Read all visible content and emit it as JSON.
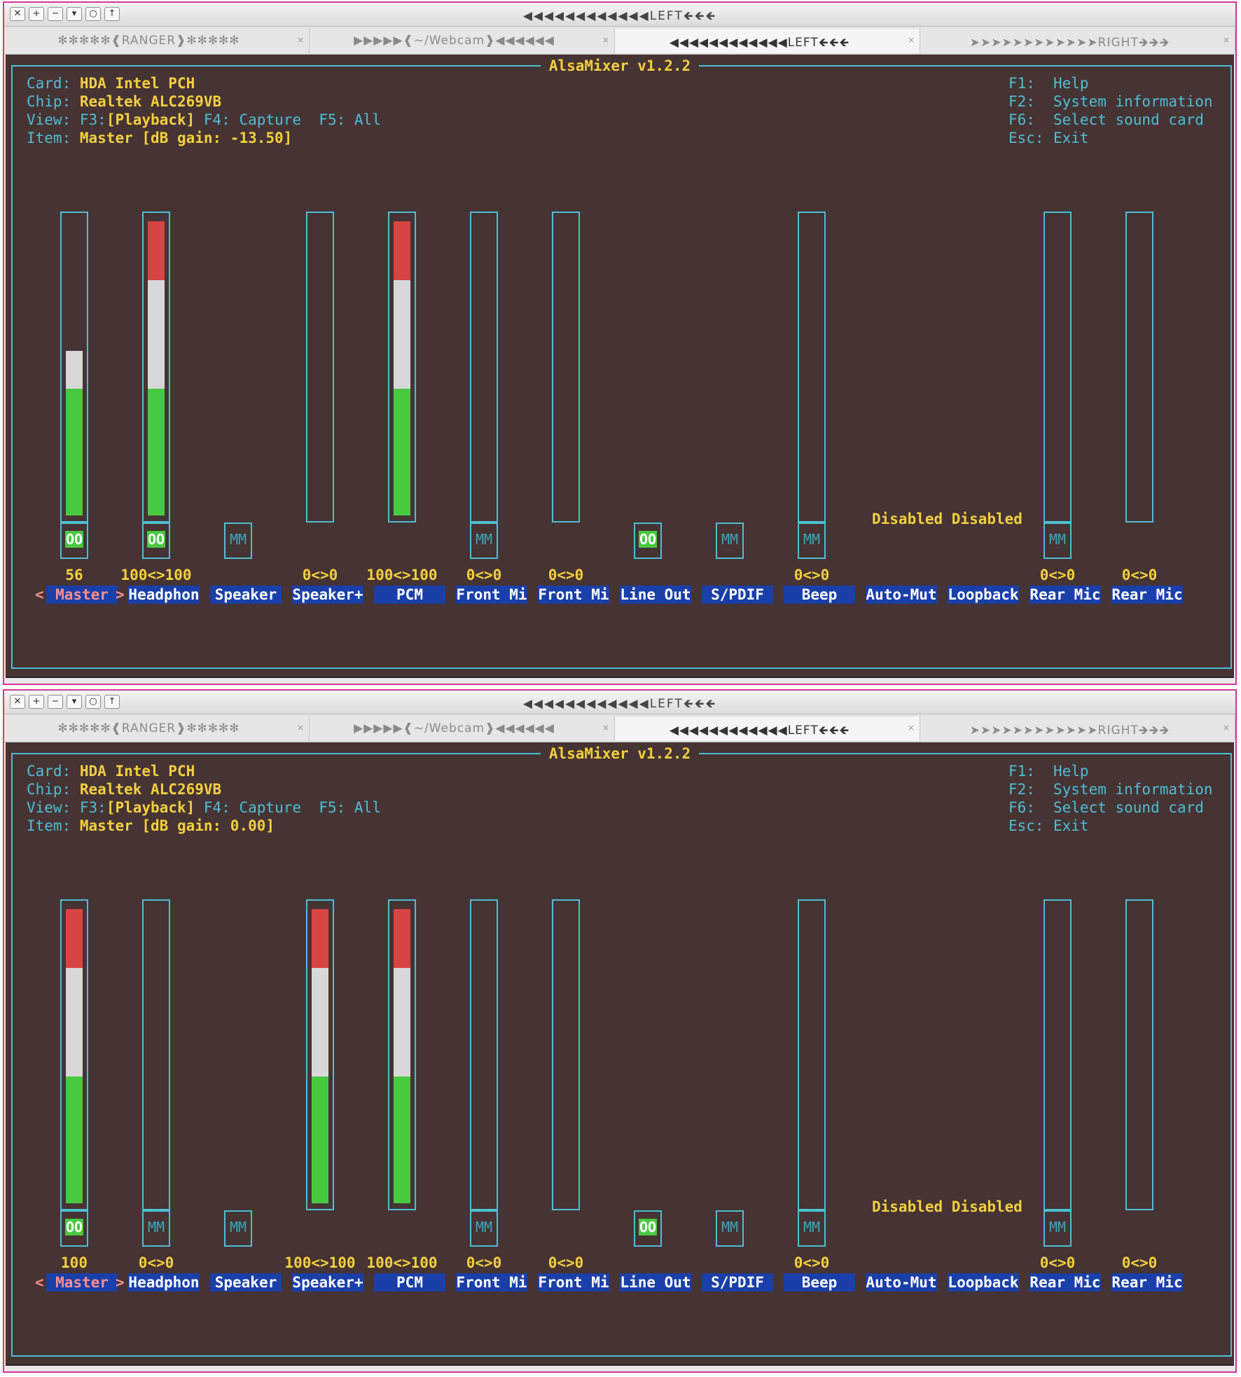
{
  "windows": [
    {
      "title": "◀◀◀◀◀◀◀◀◀◀◀◀LEFT🡸🡸🡸",
      "tabs": [
        {
          "label": "✻✻✻✻✻❰RANGER❱✻✻✻✻✻",
          "close": "×"
        },
        {
          "label": "▶▶▶▶▶❰~/Webcam❱◀◀◀◀◀◀",
          "close": "×"
        },
        {
          "label": "◀◀◀◀◀◀◀◀◀◀◀◀LEFT🡸🡸🡸",
          "close": "×"
        },
        {
          "label": "➤➤➤➤➤➤➤➤➤➤➤➤RIGHT🡺🡺🡺",
          "close": "×"
        }
      ],
      "mixer": {
        "title": "AlsaMixer v1.2.2",
        "card_label": "Card:",
        "card": "HDA Intel PCH",
        "chip_label": "Chip:",
        "chip": "Realtek ALC269VB",
        "view_label": "View:",
        "view_f3": "F3:",
        "view_playback": "[Playback]",
        "view_f4": "F4:",
        "view_capture": "Capture",
        "view_f5": "F5:",
        "view_all": "All",
        "item_label": "Item:",
        "item": "Master [dB gain: -13.50]",
        "help": [
          {
            "key": "F1:",
            "text": "Help"
          },
          {
            "key": "F2:",
            "text": "System information"
          },
          {
            "key": "F6:",
            "text": "Select sound card"
          },
          {
            "key": "Esc:",
            "text": "Exit"
          }
        ],
        "disabled_text": "Disabled Disabled",
        "sel_marker_left": "<",
        "sel_marker_right": ">",
        "controls": [
          {
            "name": "Master",
            "level": 0.56,
            "volume": "56",
            "switch": "OO",
            "selected": true
          },
          {
            "name": "Headphon",
            "level": 1.0,
            "volume": "100<>100",
            "switch": "OO"
          },
          {
            "name": "Speaker",
            "switch": "MM"
          },
          {
            "name": "Speaker+",
            "level": 0,
            "volume": "0<>0"
          },
          {
            "name": "PCM",
            "level": 1.0,
            "volume": "100<>100"
          },
          {
            "name": "Front Mi",
            "level": 0,
            "volume": "0<>0",
            "switch": "MM"
          },
          {
            "name": "Front Mi",
            "level": 0,
            "volume": "0<>0"
          },
          {
            "name": "Line Out",
            "switch": "OO"
          },
          {
            "name": "S/PDIF",
            "switch": "MM"
          },
          {
            "name": "Beep",
            "level": 0,
            "volume": "0<>0",
            "switch": "MM"
          },
          {
            "name": "Auto-Mut"
          },
          {
            "name": "Loopback"
          },
          {
            "name": "Rear Mic",
            "level": 0,
            "volume": "0<>0",
            "switch": "MM"
          },
          {
            "name": "Rear Mic",
            "level": 0,
            "volume": "0<>0"
          }
        ]
      }
    },
    {
      "title": "◀◀◀◀◀◀◀◀◀◀◀◀LEFT🡸🡸🡸",
      "tabs": [
        {
          "label": "✻✻✻✻✻❰RANGER❱✻✻✻✻✻",
          "close": "×"
        },
        {
          "label": "▶▶▶▶▶❰~/Webcam❱◀◀◀◀◀◀",
          "close": "×"
        },
        {
          "label": "◀◀◀◀◀◀◀◀◀◀◀◀LEFT🡸🡸🡸",
          "close": "×"
        },
        {
          "label": "➤➤➤➤➤➤➤➤➤➤➤➤RIGHT🡺🡺🡺",
          "close": "×"
        }
      ],
      "mixer": {
        "title": "AlsaMixer v1.2.2",
        "card_label": "Card:",
        "card": "HDA Intel PCH",
        "chip_label": "Chip:",
        "chip": "Realtek ALC269VB",
        "view_label": "View:",
        "view_f3": "F3:",
        "view_playback": "[Playback]",
        "view_f4": "F4:",
        "view_capture": "Capture",
        "view_f5": "F5:",
        "view_all": "All",
        "item_label": "Item:",
        "item": "Master [dB gain: 0.00]",
        "help": [
          {
            "key": "F1:",
            "text": "Help"
          },
          {
            "key": "F2:",
            "text": "System information"
          },
          {
            "key": "F6:",
            "text": "Select sound card"
          },
          {
            "key": "Esc:",
            "text": "Exit"
          }
        ],
        "disabled_text": "Disabled Disabled",
        "sel_marker_left": "<",
        "sel_marker_right": ">",
        "controls": [
          {
            "name": "Master",
            "level": 1.0,
            "volume": "100",
            "switch": "OO",
            "selected": true
          },
          {
            "name": "Headphon",
            "level": 0,
            "volume": "0<>0",
            "switch": "MM"
          },
          {
            "name": "Speaker",
            "switch": "MM"
          },
          {
            "name": "Speaker+",
            "level": 1.0,
            "volume": "100<>100"
          },
          {
            "name": "PCM",
            "level": 1.0,
            "volume": "100<>100"
          },
          {
            "name": "Front Mi",
            "level": 0,
            "volume": "0<>0",
            "switch": "MM"
          },
          {
            "name": "Front Mi",
            "level": 0,
            "volume": "0<>0"
          },
          {
            "name": "Line Out",
            "switch": "OO"
          },
          {
            "name": "S/PDIF",
            "switch": "MM"
          },
          {
            "name": "Beep",
            "level": 0,
            "volume": "0<>0",
            "switch": "MM"
          },
          {
            "name": "Auto-Mut"
          },
          {
            "name": "Loopback"
          },
          {
            "name": "Rear Mic",
            "level": 0,
            "volume": "0<>0",
            "switch": "MM"
          },
          {
            "name": "Rear Mic",
            "level": 0,
            "volume": "0<>0"
          }
        ]
      }
    }
  ]
}
